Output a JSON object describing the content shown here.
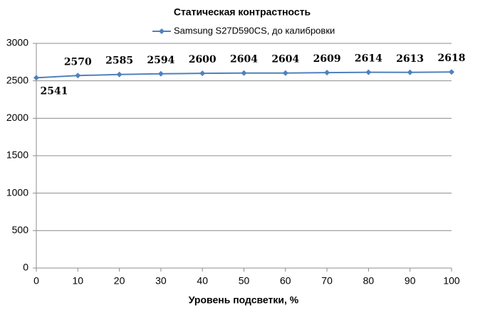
{
  "chart_data": {
    "type": "line",
    "title": "Статическая контрастность",
    "x": [
      0,
      10,
      20,
      30,
      40,
      50,
      60,
      70,
      80,
      90,
      100
    ],
    "series": [
      {
        "name": "Samsung S27D590CS, до калибровки",
        "color": "#4f81bd",
        "values": [
          2541,
          2570,
          2585,
          2594,
          2600,
          2604,
          2604,
          2609,
          2614,
          2613,
          2618
        ]
      }
    ],
    "xlabel": "Уровень подсветки, %",
    "xlim": [
      0,
      100
    ],
    "xticks": [
      0,
      10,
      20,
      30,
      40,
      50,
      60,
      70,
      80,
      90,
      100
    ],
    "ylim": [
      0,
      3000
    ],
    "yticks": [
      0,
      500,
      1000,
      1500,
      2000,
      2500,
      3000
    ],
    "grid": true,
    "legend": "top"
  }
}
